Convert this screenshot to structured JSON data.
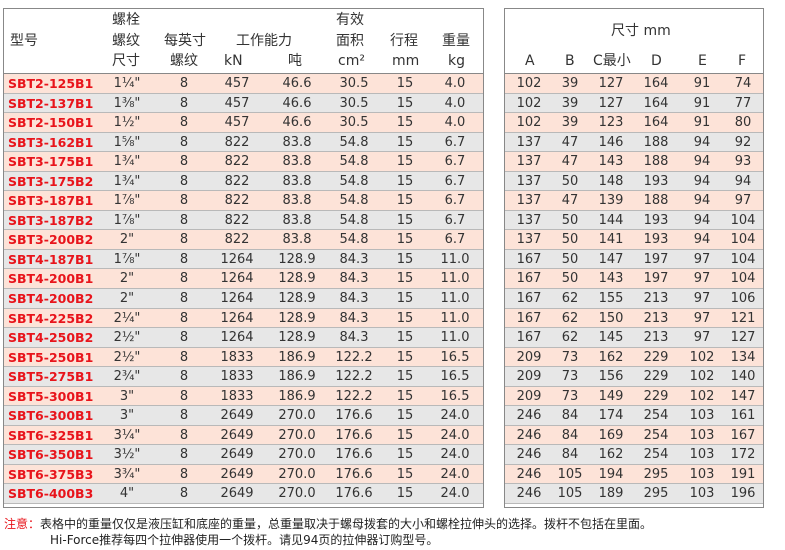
{
  "left_header": {
    "model": "型号",
    "thread_size": [
      "螺栓",
      "螺纹",
      "尺寸"
    ],
    "tpi": [
      "每英寸",
      "螺纹"
    ],
    "capacity": "工作能力",
    "kn": "kN",
    "ton": "吨",
    "area": [
      "有效",
      "面积",
      "cm²"
    ],
    "stroke": [
      "行程",
      "mm"
    ],
    "weight": [
      "重量",
      "kg"
    ]
  },
  "right_header": {
    "title": "尺寸 mm",
    "cols": [
      "A",
      "B",
      "C最小",
      "D",
      "E",
      "F"
    ]
  },
  "rows": [
    {
      "model": "SBT2-125B1",
      "thread": "1¼\"",
      "tpi": "8",
      "kn": "457",
      "ton": "46.6",
      "area": "30.5",
      "stroke": "15",
      "weight": "4.0",
      "A": "102",
      "B": "39",
      "C": "127",
      "D": "164",
      "E": "91",
      "F": "74"
    },
    {
      "model": "SBT2-137B1",
      "thread": "1⅜\"",
      "tpi": "8",
      "kn": "457",
      "ton": "46.6",
      "area": "30.5",
      "stroke": "15",
      "weight": "4.0",
      "A": "102",
      "B": "39",
      "C": "127",
      "D": "164",
      "E": "91",
      "F": "77"
    },
    {
      "model": "SBT2-150B1",
      "thread": "1½\"",
      "tpi": "8",
      "kn": "457",
      "ton": "46.6",
      "area": "30.5",
      "stroke": "15",
      "weight": "4.0",
      "A": "102",
      "B": "39",
      "C": "123",
      "D": "164",
      "E": "91",
      "F": "80"
    },
    {
      "model": "SBT3-162B1",
      "thread": "1⅝\"",
      "tpi": "8",
      "kn": "822",
      "ton": "83.8",
      "area": "54.8",
      "stroke": "15",
      "weight": "6.7",
      "A": "137",
      "B": "47",
      "C": "146",
      "D": "188",
      "E": "94",
      "F": "92"
    },
    {
      "model": "SBT3-175B1",
      "thread": "1¾\"",
      "tpi": "8",
      "kn": "822",
      "ton": "83.8",
      "area": "54.8",
      "stroke": "15",
      "weight": "6.7",
      "A": "137",
      "B": "47",
      "C": "143",
      "D": "188",
      "E": "94",
      "F": "93"
    },
    {
      "model": "SBT3-175B2",
      "thread": "1¾\"",
      "tpi": "8",
      "kn": "822",
      "ton": "83.8",
      "area": "54.8",
      "stroke": "15",
      "weight": "6.7",
      "A": "137",
      "B": "50",
      "C": "148",
      "D": "193",
      "E": "94",
      "F": "94"
    },
    {
      "model": "SBT3-187B1",
      "thread": "1⅞\"",
      "tpi": "8",
      "kn": "822",
      "ton": "83.8",
      "area": "54.8",
      "stroke": "15",
      "weight": "6.7",
      "A": "137",
      "B": "47",
      "C": "139",
      "D": "188",
      "E": "94",
      "F": "97"
    },
    {
      "model": "SBT3-187B2",
      "thread": "1⅞\"",
      "tpi": "8",
      "kn": "822",
      "ton": "83.8",
      "area": "54.8",
      "stroke": "15",
      "weight": "6.7",
      "A": "137",
      "B": "50",
      "C": "144",
      "D": "193",
      "E": "94",
      "F": "104"
    },
    {
      "model": "SBT3-200B2",
      "thread": "2\"",
      "tpi": "8",
      "kn": "822",
      "ton": "83.8",
      "area": "54.8",
      "stroke": "15",
      "weight": "6.7",
      "A": "137",
      "B": "50",
      "C": "141",
      "D": "193",
      "E": "94",
      "F": "104"
    },
    {
      "model": "SBT4-187B1",
      "thread": "1⅞\"",
      "tpi": "8",
      "kn": "1264",
      "ton": "128.9",
      "area": "84.3",
      "stroke": "15",
      "weight": "11.0",
      "A": "167",
      "B": "50",
      "C": "147",
      "D": "197",
      "E": "97",
      "F": "104"
    },
    {
      "model": "SBT4-200B1",
      "thread": "2\"",
      "tpi": "8",
      "kn": "1264",
      "ton": "128.9",
      "area": "84.3",
      "stroke": "15",
      "weight": "11.0",
      "A": "167",
      "B": "50",
      "C": "143",
      "D": "197",
      "E": "97",
      "F": "104"
    },
    {
      "model": "SBT4-200B2",
      "thread": "2\"",
      "tpi": "8",
      "kn": "1264",
      "ton": "128.9",
      "area": "84.3",
      "stroke": "15",
      "weight": "11.0",
      "A": "167",
      "B": "62",
      "C": "155",
      "D": "213",
      "E": "97",
      "F": "106"
    },
    {
      "model": "SBT4-225B2",
      "thread": "2¼\"",
      "tpi": "8",
      "kn": "1264",
      "ton": "128.9",
      "area": "84.3",
      "stroke": "15",
      "weight": "11.0",
      "A": "167",
      "B": "62",
      "C": "150",
      "D": "213",
      "E": "97",
      "F": "121"
    },
    {
      "model": "SBT4-250B2",
      "thread": "2½\"",
      "tpi": "8",
      "kn": "1264",
      "ton": "128.9",
      "area": "84.3",
      "stroke": "15",
      "weight": "11.0",
      "A": "167",
      "B": "62",
      "C": "145",
      "D": "213",
      "E": "97",
      "F": "127"
    },
    {
      "model": "SBT5-250B1",
      "thread": "2½\"",
      "tpi": "8",
      "kn": "1833",
      "ton": "186.9",
      "area": "122.2",
      "stroke": "15",
      "weight": "16.5",
      "A": "209",
      "B": "73",
      "C": "162",
      "D": "229",
      "E": "102",
      "F": "134"
    },
    {
      "model": "SBT5-275B1",
      "thread": "2¾\"",
      "tpi": "8",
      "kn": "1833",
      "ton": "186.9",
      "area": "122.2",
      "stroke": "15",
      "weight": "16.5",
      "A": "209",
      "B": "73",
      "C": "156",
      "D": "229",
      "E": "102",
      "F": "140"
    },
    {
      "model": "SBT5-300B1",
      "thread": "3\"",
      "tpi": "8",
      "kn": "1833",
      "ton": "186.9",
      "area": "122.2",
      "stroke": "15",
      "weight": "16.5",
      "A": "209",
      "B": "73",
      "C": "149",
      "D": "229",
      "E": "102",
      "F": "147"
    },
    {
      "model": "SBT6-300B1",
      "thread": "3\"",
      "tpi": "8",
      "kn": "2649",
      "ton": "270.0",
      "area": "176.6",
      "stroke": "15",
      "weight": "24.0",
      "A": "246",
      "B": "84",
      "C": "174",
      "D": "254",
      "E": "103",
      "F": "161"
    },
    {
      "model": "SBT6-325B1",
      "thread": "3¼\"",
      "tpi": "8",
      "kn": "2649",
      "ton": "270.0",
      "area": "176.6",
      "stroke": "15",
      "weight": "24.0",
      "A": "246",
      "B": "84",
      "C": "169",
      "D": "254",
      "E": "103",
      "F": "167"
    },
    {
      "model": "SBT6-350B1",
      "thread": "3½\"",
      "tpi": "8",
      "kn": "2649",
      "ton": "270.0",
      "area": "176.6",
      "stroke": "15",
      "weight": "24.0",
      "A": "246",
      "B": "84",
      "C": "162",
      "D": "254",
      "E": "103",
      "F": "172"
    },
    {
      "model": "SBT6-375B3",
      "thread": "3¾\"",
      "tpi": "8",
      "kn": "2649",
      "ton": "270.0",
      "area": "176.6",
      "stroke": "15",
      "weight": "24.0",
      "A": "246",
      "B": "105",
      "C": "194",
      "D": "295",
      "E": "103",
      "F": "191"
    },
    {
      "model": "SBT6-400B3",
      "thread": "4\"",
      "tpi": "8",
      "kn": "2649",
      "ton": "270.0",
      "area": "176.6",
      "stroke": "15",
      "weight": "24.0",
      "A": "246",
      "B": "105",
      "C": "189",
      "D": "295",
      "E": "103",
      "F": "196"
    }
  ],
  "note": {
    "lead": "注意：",
    "line1": "表格中的重量仅仅是液压缸和底座的重量，总重量取决于螺母拨套的大小和螺栓拉伸头的选择。拨杆不包括在里面。",
    "line2": "Hi-Force推荐每四个拉伸器使用一个拨杆。请见94页的拉伸器订购型号。"
  }
}
